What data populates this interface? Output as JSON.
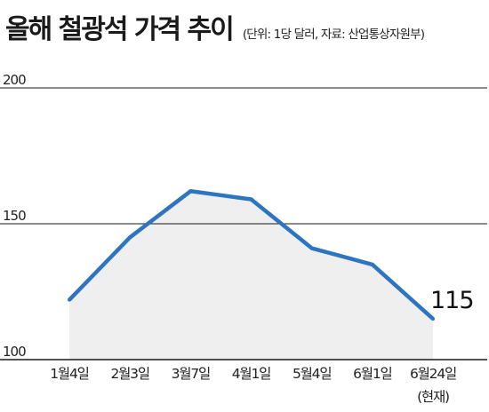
{
  "header": {
    "title": "올해 철광석 가격 추이",
    "note": "(단위: 1당 달러, 자료: 산업통상자원부)"
  },
  "chart_data": {
    "type": "area",
    "title": "올해 철광석 가격 추이",
    "subtitle": "(단위: 1당 달러, 자료: 산업통상자원부)",
    "categories": [
      "1월4일",
      "2월3일",
      "3월7일",
      "4월1일",
      "5월4일",
      "6월1일",
      "6월24일"
    ],
    "category_notes": [
      "",
      "",
      "",
      "",
      "",
      "",
      "(현재)"
    ],
    "values": [
      122,
      145,
      162,
      159,
      141,
      135,
      115
    ],
    "last_value_label": "115",
    "yticks": [
      100,
      150,
      200
    ],
    "ylim": [
      100,
      200
    ],
    "xlabel": "",
    "ylabel": "",
    "grid": true,
    "line_color": "#2e75c0",
    "fill_color": "#efefef",
    "grid_color": "#1a1a1a"
  }
}
